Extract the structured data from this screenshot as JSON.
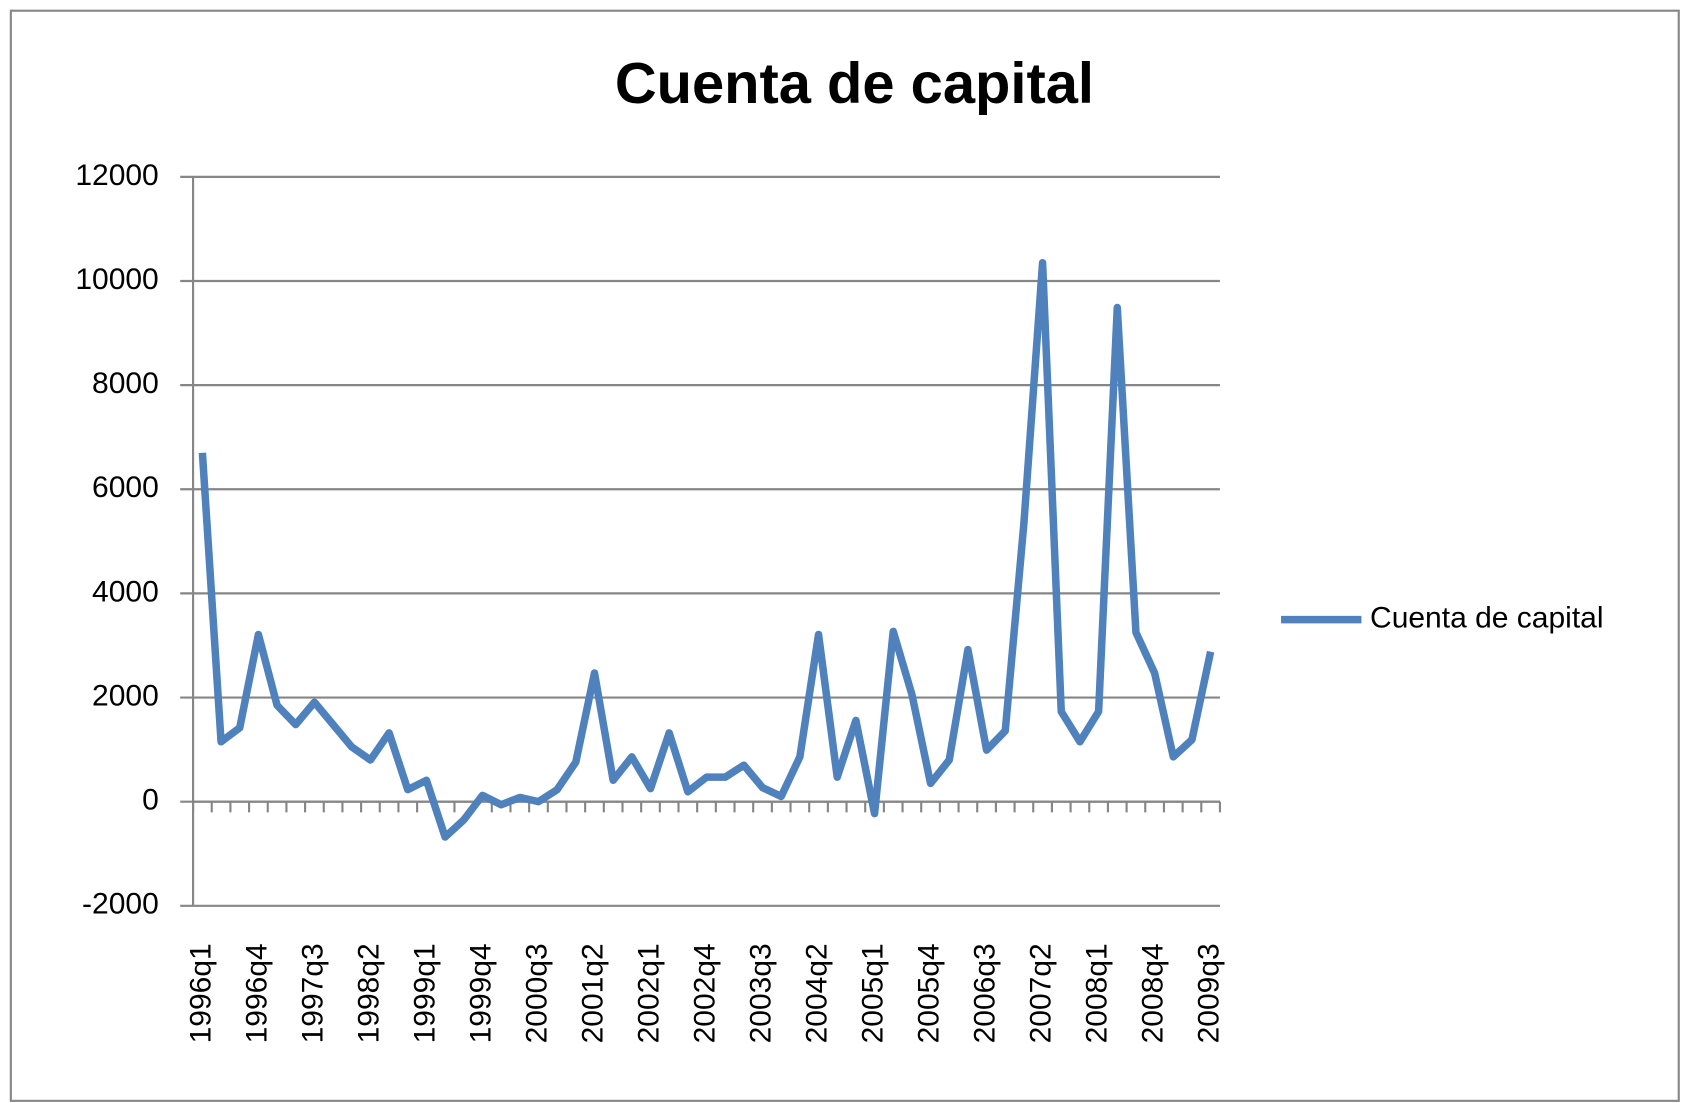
{
  "chart_data": {
    "type": "line",
    "title": "Cuenta de capital",
    "categories": [
      "1996q1",
      null,
      null,
      "1996q4",
      null,
      null,
      "1997q3",
      null,
      null,
      "1998q2",
      null,
      null,
      "1999q1",
      null,
      null,
      "1999q4",
      null,
      null,
      "2000q3",
      null,
      null,
      "2001q2",
      null,
      null,
      "2002q1",
      null,
      null,
      "2002q4",
      null,
      null,
      "2003q3",
      null,
      null,
      "2004q2",
      null,
      null,
      "2005q1",
      null,
      null,
      "2005q4",
      null,
      null,
      "2006q3",
      null,
      null,
      "2007q2",
      null,
      null,
      "2008q1",
      null,
      null,
      "2008q4",
      null,
      null,
      "2009q3"
    ],
    "series": [
      {
        "name": "Cuenta de capital",
        "color": "#4f81bd",
        "values": [
          6700,
          1150,
          1420,
          3210,
          1850,
          1480,
          1910,
          1480,
          1050,
          800,
          1320,
          230,
          410,
          -680,
          -350,
          120,
          -60,
          80,
          0,
          230,
          760,
          2470,
          410,
          860,
          250,
          1320,
          190,
          470,
          470,
          700,
          270,
          100,
          860,
          3210,
          470,
          1560,
          -230,
          3270,
          2060,
          350,
          800,
          2920,
          990,
          1360,
          5350,
          10350,
          1730,
          1150,
          1730,
          9490,
          3250,
          2470,
          860,
          1190,
          2880
        ]
      }
    ],
    "ylim": [
      -2000,
      12000
    ],
    "yticks": [
      -2000,
      0,
      2000,
      4000,
      6000,
      8000,
      10000,
      12000
    ],
    "grid": true,
    "legend": "right"
  }
}
